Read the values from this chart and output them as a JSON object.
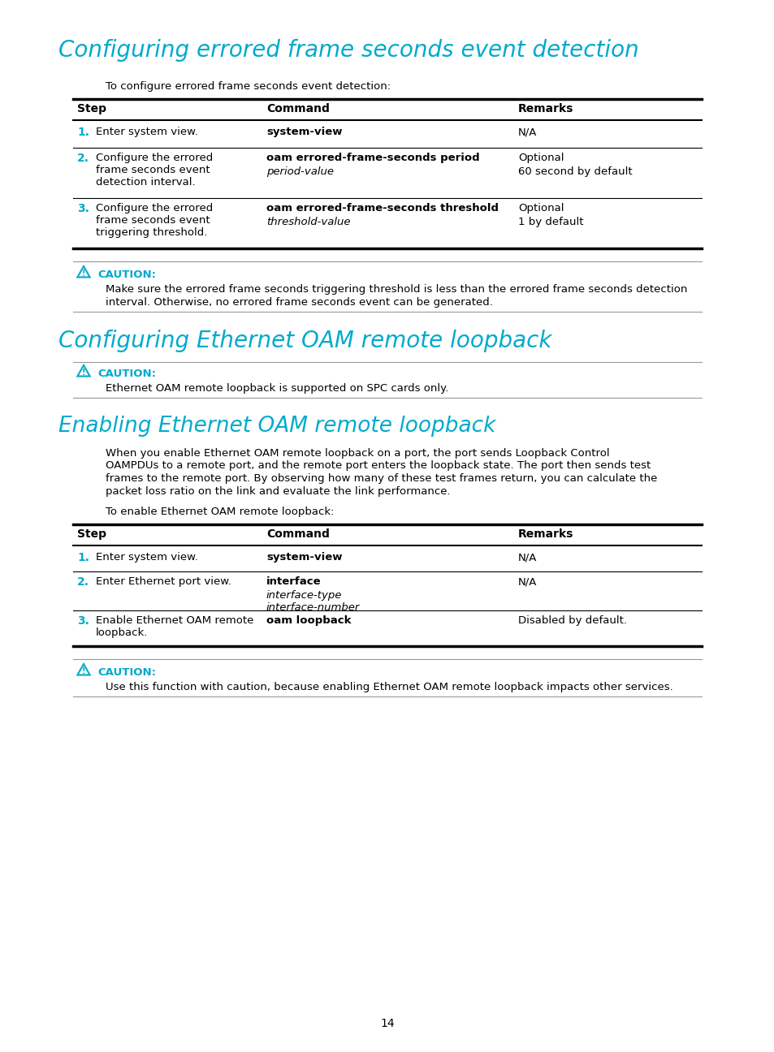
{
  "page_bg": "#ffffff",
  "cyan_color": "#00aacc",
  "black_color": "#000000",
  "section1_title": "Configuring errored frame seconds event detection",
  "section1_intro": "To configure errored frame seconds event detection:",
  "table1_headers": [
    "Step",
    "Command",
    "Remarks"
  ],
  "table1_rows": [
    {
      "step_num": "1.",
      "step_desc": "Enter system view.",
      "command_bold": "system-view",
      "command_italic": "",
      "remarks_line1": "N/A",
      "remarks_line2": ""
    },
    {
      "step_num": "2.",
      "step_desc": "Configure the errored\nframe seconds event\ndetection interval.",
      "command_bold": "oam errored-frame-seconds period",
      "command_italic": "period-value",
      "remarks_line1": "Optional",
      "remarks_line2": "60 second by default"
    },
    {
      "step_num": "3.",
      "step_desc": "Configure the errored\nframe seconds event\ntriggering threshold.",
      "command_bold": "oam errored-frame-seconds threshold",
      "command_italic": "threshold-value",
      "remarks_line1": "Optional",
      "remarks_line2": "1 by default"
    }
  ],
  "caution1_line1": "Make sure the errored frame seconds triggering threshold is less than the errored frame seconds detection",
  "caution1_line2": "interval. Otherwise, no errored frame seconds event can be generated.",
  "section2_title": "Configuring Ethernet OAM remote loopback",
  "caution2_text": "Ethernet OAM remote loopback is supported on SPC cards only.",
  "section3_title": "Enabling Ethernet OAM remote loopback",
  "section3_para_lines": [
    "When you enable Ethernet OAM remote loopback on a port, the port sends Loopback Control",
    "OAMPDUs to a remote port, and the remote port enters the loopback state. The port then sends test",
    "frames to the remote port. By observing how many of these test frames return, you can calculate the",
    "packet loss ratio on the link and evaluate the link performance."
  ],
  "section3_intro": "To enable Ethernet OAM remote loopback:",
  "table2_headers": [
    "Step",
    "Command",
    "Remarks"
  ],
  "table2_rows": [
    {
      "step_num": "1.",
      "step_desc": "Enter system view.",
      "command_bold": "system-view",
      "command_italic": "",
      "remarks_line1": "N/A",
      "remarks_line2": ""
    },
    {
      "step_num": "2.",
      "step_desc": "Enter Ethernet port view.",
      "command_bold": "interface",
      "command_italic": "interface-type\ninterface-number",
      "remarks_line1": "N/A",
      "remarks_line2": ""
    },
    {
      "step_num": "3.",
      "step_desc": "Enable Ethernet OAM remote\nloopback.",
      "command_bold": "oam loopback",
      "command_italic": "",
      "remarks_line1": "Disabled by default.",
      "remarks_line2": ""
    }
  ],
  "caution3_text": "Use this function with caution, because enabling Ethernet OAM remote loopback impacts other services.",
  "page_number": "14"
}
